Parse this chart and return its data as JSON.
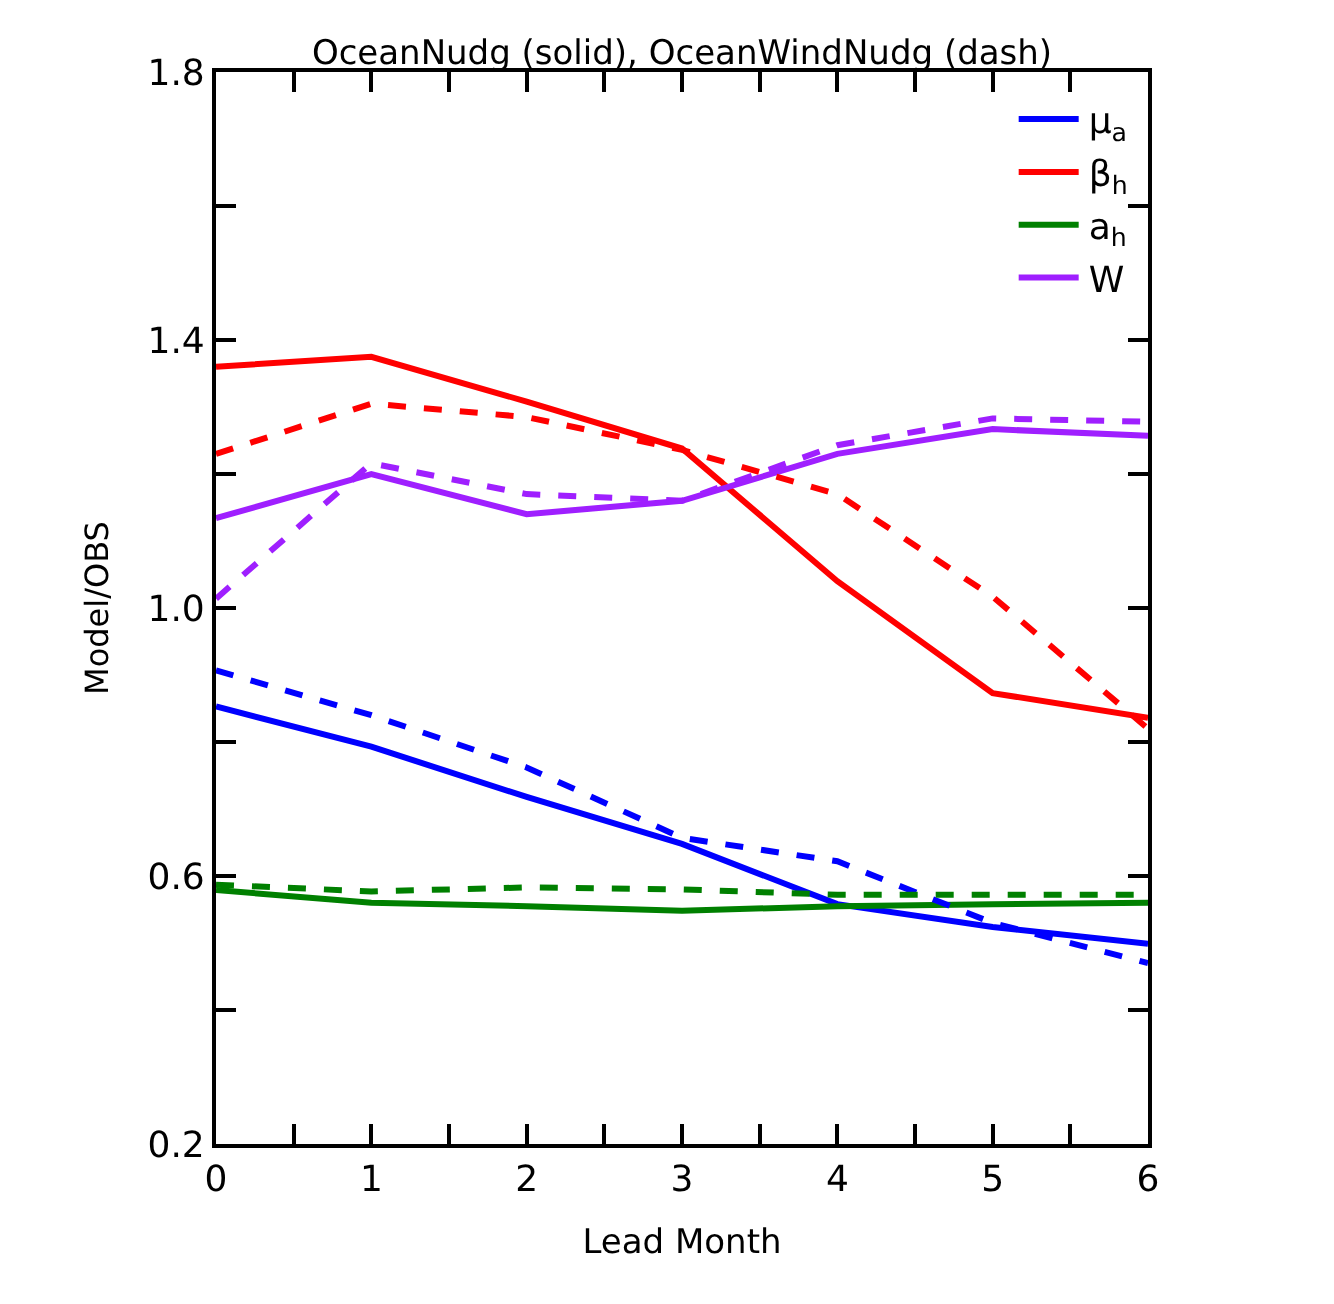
{
  "chart_data": {
    "type": "line",
    "title": "OceanNudg (solid), OceanWindNudg (dash)",
    "xlabel": "Lead Month",
    "ylabel": "Model/OBS",
    "x": [
      0,
      1,
      2,
      3,
      4,
      5,
      6
    ],
    "series": [
      {
        "name": "μ$_{a}$",
        "color": "#0000ff",
        "line_style": "solid",
        "values": [
          0.853,
          0.793,
          0.718,
          0.648,
          0.558,
          0.524,
          0.499
        ]
      },
      {
        "name": "β$_{h}$",
        "color": "#ff0000",
        "line_style": "solid",
        "values": [
          1.36,
          1.375,
          1.308,
          1.238,
          1.04,
          0.873,
          0.836
        ]
      },
      {
        "name": "a$_{h}$",
        "color": "#008000",
        "line_style": "solid",
        "values": [
          0.579,
          0.56,
          0.555,
          0.548,
          0.555,
          0.558,
          0.56
        ]
      },
      {
        "name": "W",
        "color": "#9f1fff",
        "line_style": "solid",
        "values": [
          1.134,
          1.2,
          1.14,
          1.16,
          1.23,
          1.267,
          1.257
        ]
      },
      {
        "color": "#0000ff",
        "line_style": "dashed",
        "values": [
          0.907,
          0.84,
          0.762,
          0.657,
          0.622,
          0.53,
          0.47
        ]
      },
      {
        "color": "#ff0000",
        "line_style": "dashed",
        "values": [
          1.23,
          1.305,
          1.285,
          1.236,
          1.17,
          1.017,
          0.82
        ]
      },
      {
        "color": "#008000",
        "line_style": "dashed",
        "values": [
          0.587,
          0.577,
          0.583,
          0.58,
          0.572,
          0.572,
          0.572
        ]
      },
      {
        "color": "#9f1fff",
        "line_style": "dashed",
        "values": [
          1.014,
          1.216,
          1.17,
          1.16,
          1.243,
          1.283,
          1.278
        ]
      }
    ],
    "xlim": [
      0,
      6
    ],
    "xticks": [
      0,
      {
        "value": 0.5,
        "label": null
      },
      1,
      {
        "value": 1.5,
        "label": null
      },
      2,
      {
        "value": 2.5,
        "label": null
      },
      3,
      {
        "value": 3.5,
        "label": null
      },
      4,
      {
        "value": 4.5,
        "label": null
      },
      5,
      {
        "value": 5.5,
        "label": null
      },
      6
    ],
    "ylim": [
      0.2,
      1.8
    ],
    "yticks": [
      {
        "value": 0.2,
        "label": "0.2"
      },
      {
        "value": 0.4,
        "label": null
      },
      {
        "value": 0.6,
        "label": "0.6"
      },
      {
        "value": 0.8,
        "label": null
      },
      {
        "value": 1.0,
        "label": "1.0"
      },
      {
        "value": 1.2,
        "label": null
      },
      {
        "value": 1.4,
        "label": "1.4"
      },
      {
        "value": 1.6,
        "label": null
      },
      {
        "value": 1.8,
        "label": "1.8"
      }
    ],
    "legend": "top right"
  }
}
